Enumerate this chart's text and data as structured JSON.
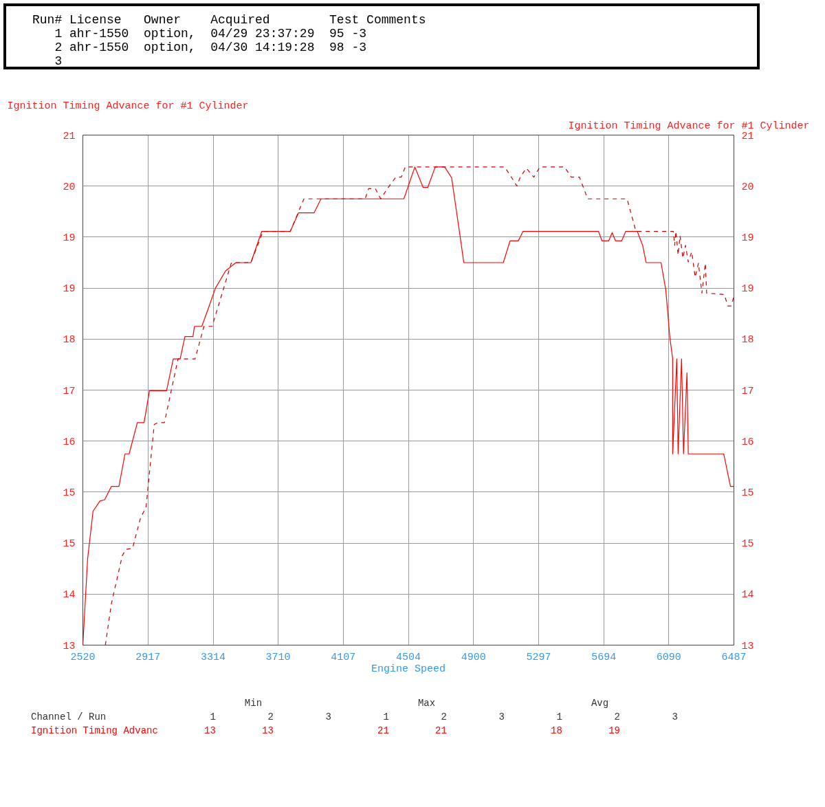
{
  "chart_data": {
    "type": "line",
    "xlabel": "Engine Speed",
    "ylabel": "Ignition Timing Advance for #1 Cylinder",
    "y2label": "Ignition Timing Advance for #1 Cylinder",
    "xlim": [
      2520,
      6487
    ],
    "xticks": [
      2520,
      2917,
      3314,
      3710,
      4107,
      4504,
      4900,
      5297,
      5694,
      6090,
      6487
    ],
    "ylim": [
      13,
      21
    ],
    "yticks": [
      13,
      {
        "value": 13.8,
        "label": "14"
      },
      {
        "value": 14.6,
        "label": "15"
      },
      {
        "value": 15.4,
        "label": "15"
      },
      {
        "value": 16.2,
        "label": "16"
      },
      17,
      {
        "value": 17.8,
        "label": "18"
      },
      {
        "value": 18.6,
        "label": "19"
      },
      {
        "value": 19.4,
        "label": "19"
      },
      {
        "value": 20.2,
        "label": "20"
      },
      21
    ],
    "y2lim": [
      13,
      21
    ],
    "y2ticks": [
      13,
      {
        "value": 13.8,
        "label": "14"
      },
      {
        "value": 14.6,
        "label": "15"
      },
      {
        "value": 15.4,
        "label": "15"
      },
      {
        "value": 16.2,
        "label": "16"
      },
      17,
      {
        "value": 17.8,
        "label": "18"
      },
      {
        "value": 18.6,
        "label": "19"
      },
      {
        "value": 19.4,
        "label": "19"
      },
      {
        "value": 20.2,
        "label": "20"
      },
      21
    ],
    "grid": true,
    "series": [
      {
        "color": "#ff0000",
        "line_style": "solid",
        "x": [
          2520,
          2549,
          2582,
          2624,
          2653,
          2694,
          2740,
          2777,
          2802,
          2852,
          2893,
          2926,
          3030,
          3071,
          3113,
          3142,
          3191,
          3200,
          3245,
          3287,
          3328,
          3390,
          3453,
          3544,
          3610,
          3784,
          3834,
          3929,
          3971,
          4476,
          4543,
          4593,
          4622,
          4667,
          4725,
          4767,
          4821,
          4841,
          5082,
          5123,
          5173,
          5202,
          5662,
          5683,
          5724,
          5745,
          5766,
          5803,
          5828,
          5898,
          5931,
          5952,
          6043,
          6072,
          6097,
          6114,
          6114,
          6139,
          6147,
          6168,
          6180,
          6201,
          6209,
          6238,
          6425,
          6466,
          6487
        ],
        "values": [
          13.0,
          14.35,
          15.1,
          15.26,
          15.28,
          15.49,
          15.49,
          16.0,
          16.0,
          16.49,
          16.49,
          16.99,
          16.99,
          17.49,
          17.49,
          17.84,
          17.84,
          18.0,
          18.0,
          18.3,
          18.6,
          18.87,
          19.0,
          19.0,
          19.49,
          19.49,
          19.78,
          19.78,
          20.0,
          20.0,
          20.5,
          20.18,
          20.18,
          20.5,
          20.5,
          20.33,
          19.37,
          19.0,
          19.0,
          19.34,
          19.34,
          19.49,
          19.49,
          19.34,
          19.34,
          19.47,
          19.34,
          19.34,
          19.49,
          19.49,
          19.27,
          19.0,
          19.0,
          18.57,
          17.82,
          17.49,
          16.0,
          17.49,
          16.0,
          17.49,
          16.0,
          17.27,
          16.0,
          16.0,
          16.0,
          15.49,
          15.49
        ]
      },
      {
        "color": "#cc0000",
        "line_style": "dashed",
        "x": [
          2657,
          2694,
          2760,
          2781,
          2823,
          2872,
          2905,
          2955,
          2976,
          3017,
          3100,
          3204,
          3258,
          3308,
          3424,
          3453,
          3544,
          3618,
          3784,
          3867,
          3962,
          4240,
          4261,
          4302,
          4335,
          4376,
          4427,
          4460,
          4485,
          5090,
          5131,
          5165,
          5185,
          5222,
          5268,
          5305,
          5455,
          5496,
          5546,
          5596,
          5836,
          5890,
          6118,
          6126,
          6134,
          6147,
          6159,
          6176,
          6192,
          6209,
          6230,
          6251,
          6271,
          6292,
          6313,
          6321,
          6429,
          6449,
          6470,
          6487
        ],
        "values": [
          13.0,
          13.65,
          14.4,
          14.5,
          14.52,
          15.0,
          15.16,
          16.46,
          16.49,
          16.49,
          17.49,
          17.49,
          18.0,
          18.0,
          18.99,
          19.0,
          19.0,
          19.49,
          19.49,
          20.0,
          20.0,
          20.0,
          20.16,
          20.16,
          20.0,
          20.16,
          20.34,
          20.34,
          20.5,
          20.5,
          20.34,
          20.2,
          20.34,
          20.48,
          20.34,
          20.5,
          20.5,
          20.34,
          20.34,
          20.0,
          20.0,
          19.49,
          19.49,
          19.27,
          19.49,
          19.12,
          19.42,
          19.07,
          19.27,
          19.01,
          19.17,
          18.77,
          18.99,
          18.52,
          18.99,
          18.52,
          18.5,
          18.32,
          18.32,
          18.47
        ]
      }
    ],
    "annotations": [
      "Run# License   Owner    Acquired        Test Comments",
      "   1 ahr-1550  option,  04/29 23:37:29  95 -3",
      "   2 ahr-1550  option,  04/30 14:19:28  98 -3",
      "   3",
      "                                     Min                           Max                           Avg",
      "Channel / Run                  1         2         3         1         2         3         1         2         3",
      "Ignition Timing Advanc        13        13                  21        21                  18        19"
    ]
  }
}
